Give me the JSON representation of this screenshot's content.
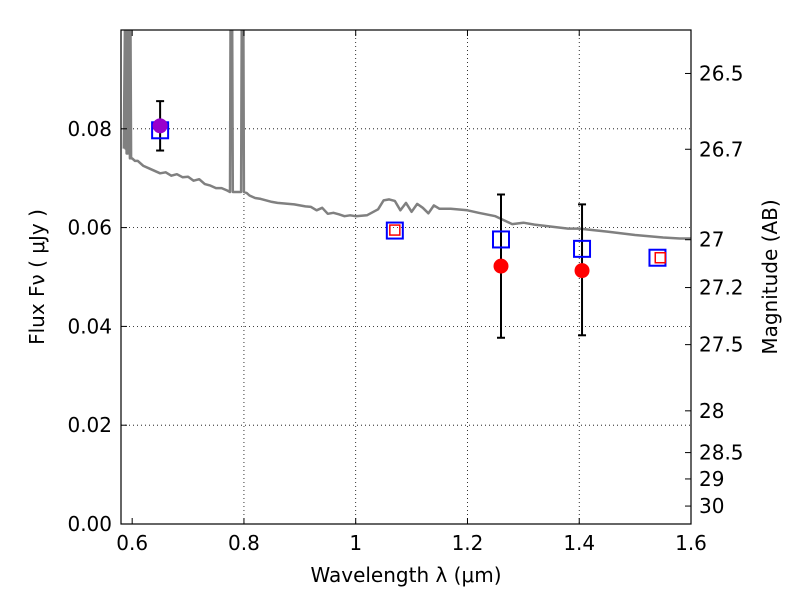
{
  "chart_data": {
    "type": "scatter",
    "xlabel": "Wavelength  λ (μm)",
    "ylabel": "Flux  Fν  ( μJy )",
    "y2label": "Magnitude (AB)",
    "xlim": [
      0.58,
      1.6
    ],
    "ylim": [
      0.0,
      0.1
    ],
    "grid": true,
    "x_ticks": [
      0.6,
      0.8,
      1.0,
      1.2,
      1.4,
      1.6
    ],
    "x_tick_labels": [
      "0.6",
      "0.8",
      "1",
      "1.2",
      "1.4",
      "1.6"
    ],
    "y_ticks": [
      0.0,
      0.02,
      0.04,
      0.06,
      0.08
    ],
    "y_tick_labels": [
      "0.00",
      "0.02",
      "0.04",
      "0.06",
      "0.08"
    ],
    "mag_ticks": [
      26.5,
      26.7,
      27,
      27.2,
      27.5,
      28,
      28.5,
      29,
      30
    ],
    "mag_tick_labels": [
      "26.5",
      "26.7",
      "27",
      "27.2",
      "27.5",
      "28",
      "28.5",
      "29",
      "30"
    ],
    "series": [
      {
        "name": "model_spectrum",
        "style": "line",
        "color": "#808080",
        "x": [
          0.585,
          0.587,
          0.588,
          0.589,
          0.59,
          0.591,
          0.592,
          0.593,
          0.594,
          0.595,
          0.596,
          0.597,
          0.598,
          0.6,
          0.605,
          0.61,
          0.62,
          0.63,
          0.64,
          0.65,
          0.66,
          0.67,
          0.68,
          0.69,
          0.7,
          0.71,
          0.72,
          0.73,
          0.74,
          0.75,
          0.76,
          0.77,
          0.775,
          0.776,
          0.779,
          0.78,
          0.785,
          0.79,
          0.795,
          0.796,
          0.799,
          0.8,
          0.805,
          0.81,
          0.82,
          0.83,
          0.84,
          0.85,
          0.86,
          0.87,
          0.88,
          0.89,
          0.9,
          0.91,
          0.92,
          0.93,
          0.94,
          0.95,
          0.96,
          0.97,
          0.98,
          0.99,
          1.0,
          1.02,
          1.04,
          1.05,
          1.06,
          1.07,
          1.08,
          1.09,
          1.1,
          1.11,
          1.12,
          1.13,
          1.14,
          1.15,
          1.17,
          1.2,
          1.22,
          1.25,
          1.28,
          1.3,
          1.32,
          1.35,
          1.38,
          1.4,
          1.45,
          1.5,
          1.55,
          1.58,
          1.6
        ],
        "y": [
          0.076,
          0.1,
          0.076,
          0.1,
          0.075,
          0.1,
          0.075,
          0.1,
          0.075,
          0.1,
          0.074,
          0.1,
          0.074,
          0.074,
          0.0735,
          0.0735,
          0.0725,
          0.072,
          0.0715,
          0.071,
          0.0712,
          0.0705,
          0.0708,
          0.0702,
          0.0703,
          0.0695,
          0.0698,
          0.0688,
          0.0685,
          0.068,
          0.068,
          0.0675,
          0.0672,
          0.1,
          0.1,
          0.0672,
          0.0672,
          0.0672,
          0.0672,
          0.1,
          0.1,
          0.0672,
          0.067,
          0.0665,
          0.066,
          0.0658,
          0.0655,
          0.0652,
          0.065,
          0.0649,
          0.0648,
          0.0647,
          0.0645,
          0.0643,
          0.0642,
          0.0635,
          0.064,
          0.0628,
          0.063,
          0.0627,
          0.0623,
          0.0625,
          0.0623,
          0.0625,
          0.0637,
          0.0655,
          0.0657,
          0.0654,
          0.0635,
          0.065,
          0.0632,
          0.0648,
          0.064,
          0.0629,
          0.0645,
          0.0638,
          0.0638,
          0.0635,
          0.063,
          0.0623,
          0.0607,
          0.061,
          0.0606,
          0.0602,
          0.0598,
          0.0598,
          0.0592,
          0.0585,
          0.058,
          0.0578,
          0.0578
        ]
      },
      {
        "name": "blue_open_squares",
        "style": "open_square_large",
        "color": "#0000ff",
        "x": [
          0.65,
          1.07,
          1.26,
          1.405,
          1.54
        ],
        "y": [
          0.0797,
          0.0594,
          0.0576,
          0.0557,
          0.0539
        ]
      },
      {
        "name": "red_open_squares",
        "style": "open_square_small",
        "color": "#ff0000",
        "x": [
          1.07,
          1.545
        ],
        "y": [
          0.0595,
          0.0539
        ]
      },
      {
        "name": "red_filled_circles",
        "style": "filled_circle",
        "color": "#ff0000",
        "x": [
          1.26,
          1.405
        ],
        "y": [
          0.0522,
          0.0513
        ]
      },
      {
        "name": "purple_filled_circle",
        "style": "filled_circle",
        "color": "#9900cc",
        "x": [
          0.65
        ],
        "y": [
          0.0806
        ]
      },
      {
        "name": "error_bars",
        "style": "errorbar",
        "color": "#000000",
        "x": [
          0.65,
          1.26,
          1.405
        ],
        "y_low": [
          0.0756,
          0.0377,
          0.0382
        ],
        "y_high": [
          0.0856,
          0.0667,
          0.0647
        ]
      }
    ]
  }
}
